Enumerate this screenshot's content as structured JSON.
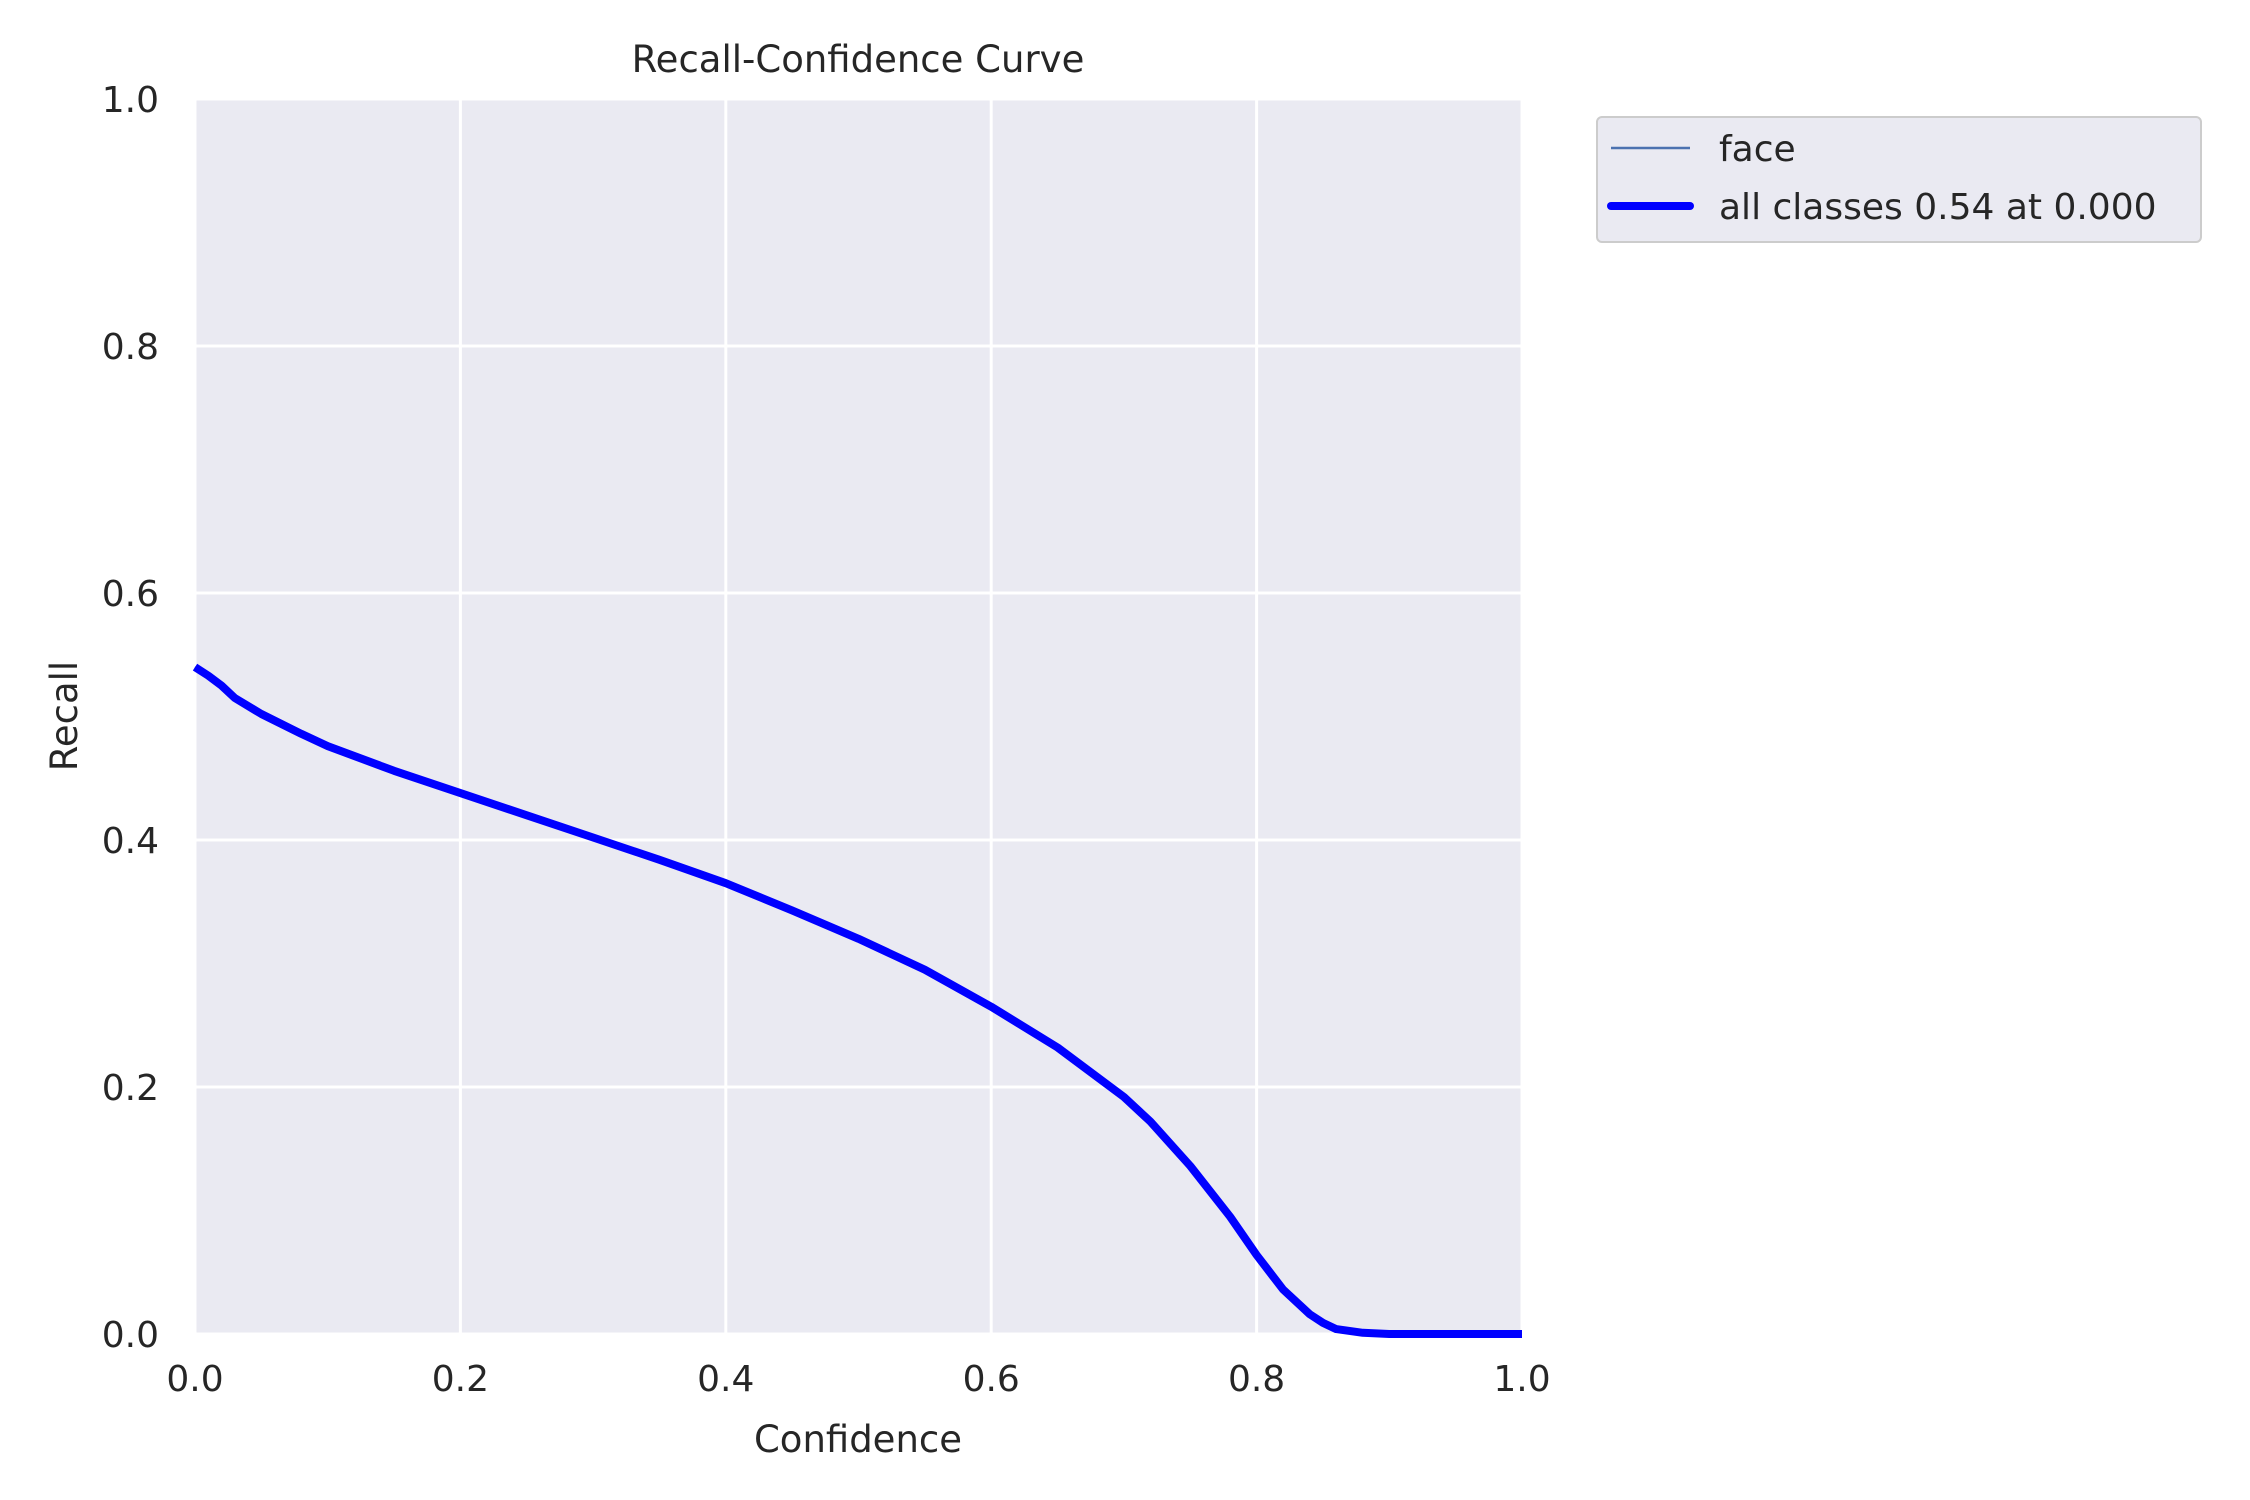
{
  "chart_data": {
    "type": "line",
    "title": "Recall-Confidence Curve",
    "xlabel": "Confidence",
    "ylabel": "Recall",
    "xlim": [
      0.0,
      1.0
    ],
    "ylim": [
      0.0,
      1.0
    ],
    "xticks": [
      "0.0",
      "0.2",
      "0.4",
      "0.6",
      "0.8",
      "1.0"
    ],
    "yticks": [
      "0.0",
      "0.2",
      "0.4",
      "0.6",
      "0.8",
      "1.0"
    ],
    "grid": true,
    "legend_position": "outside-top-right",
    "colors": {
      "face": "#4c72b0",
      "all_classes": "#0000ff",
      "plot_background": "#eaeaf2",
      "grid": "#ffffff"
    },
    "series": [
      {
        "name": "face",
        "x": [
          0.0,
          0.01,
          0.02,
          0.03,
          0.05,
          0.08,
          0.1,
          0.15,
          0.2,
          0.25,
          0.3,
          0.35,
          0.4,
          0.45,
          0.5,
          0.55,
          0.6,
          0.65,
          0.7,
          0.72,
          0.75,
          0.78,
          0.8,
          0.82,
          0.84,
          0.85,
          0.86,
          0.88,
          0.9,
          0.95,
          1.0
        ],
        "y": [
          0.54,
          0.533,
          0.525,
          0.515,
          0.502,
          0.486,
          0.476,
          0.456,
          0.438,
          0.42,
          0.402,
          0.384,
          0.365,
          0.343,
          0.32,
          0.295,
          0.265,
          0.232,
          0.192,
          0.172,
          0.136,
          0.095,
          0.064,
          0.036,
          0.016,
          0.009,
          0.004,
          0.001,
          0.0,
          0.0,
          0.0
        ]
      },
      {
        "name": "all classes 0.54 at 0.000",
        "x": [
          0.0,
          0.01,
          0.02,
          0.03,
          0.05,
          0.08,
          0.1,
          0.15,
          0.2,
          0.25,
          0.3,
          0.35,
          0.4,
          0.45,
          0.5,
          0.55,
          0.6,
          0.65,
          0.7,
          0.72,
          0.75,
          0.78,
          0.8,
          0.82,
          0.84,
          0.85,
          0.86,
          0.88,
          0.9,
          0.95,
          1.0
        ],
        "y": [
          0.54,
          0.533,
          0.525,
          0.515,
          0.502,
          0.486,
          0.476,
          0.456,
          0.438,
          0.42,
          0.402,
          0.384,
          0.365,
          0.343,
          0.32,
          0.295,
          0.265,
          0.232,
          0.192,
          0.172,
          0.136,
          0.095,
          0.064,
          0.036,
          0.016,
          0.009,
          0.004,
          0.001,
          0.0,
          0.0,
          0.0
        ]
      }
    ]
  }
}
